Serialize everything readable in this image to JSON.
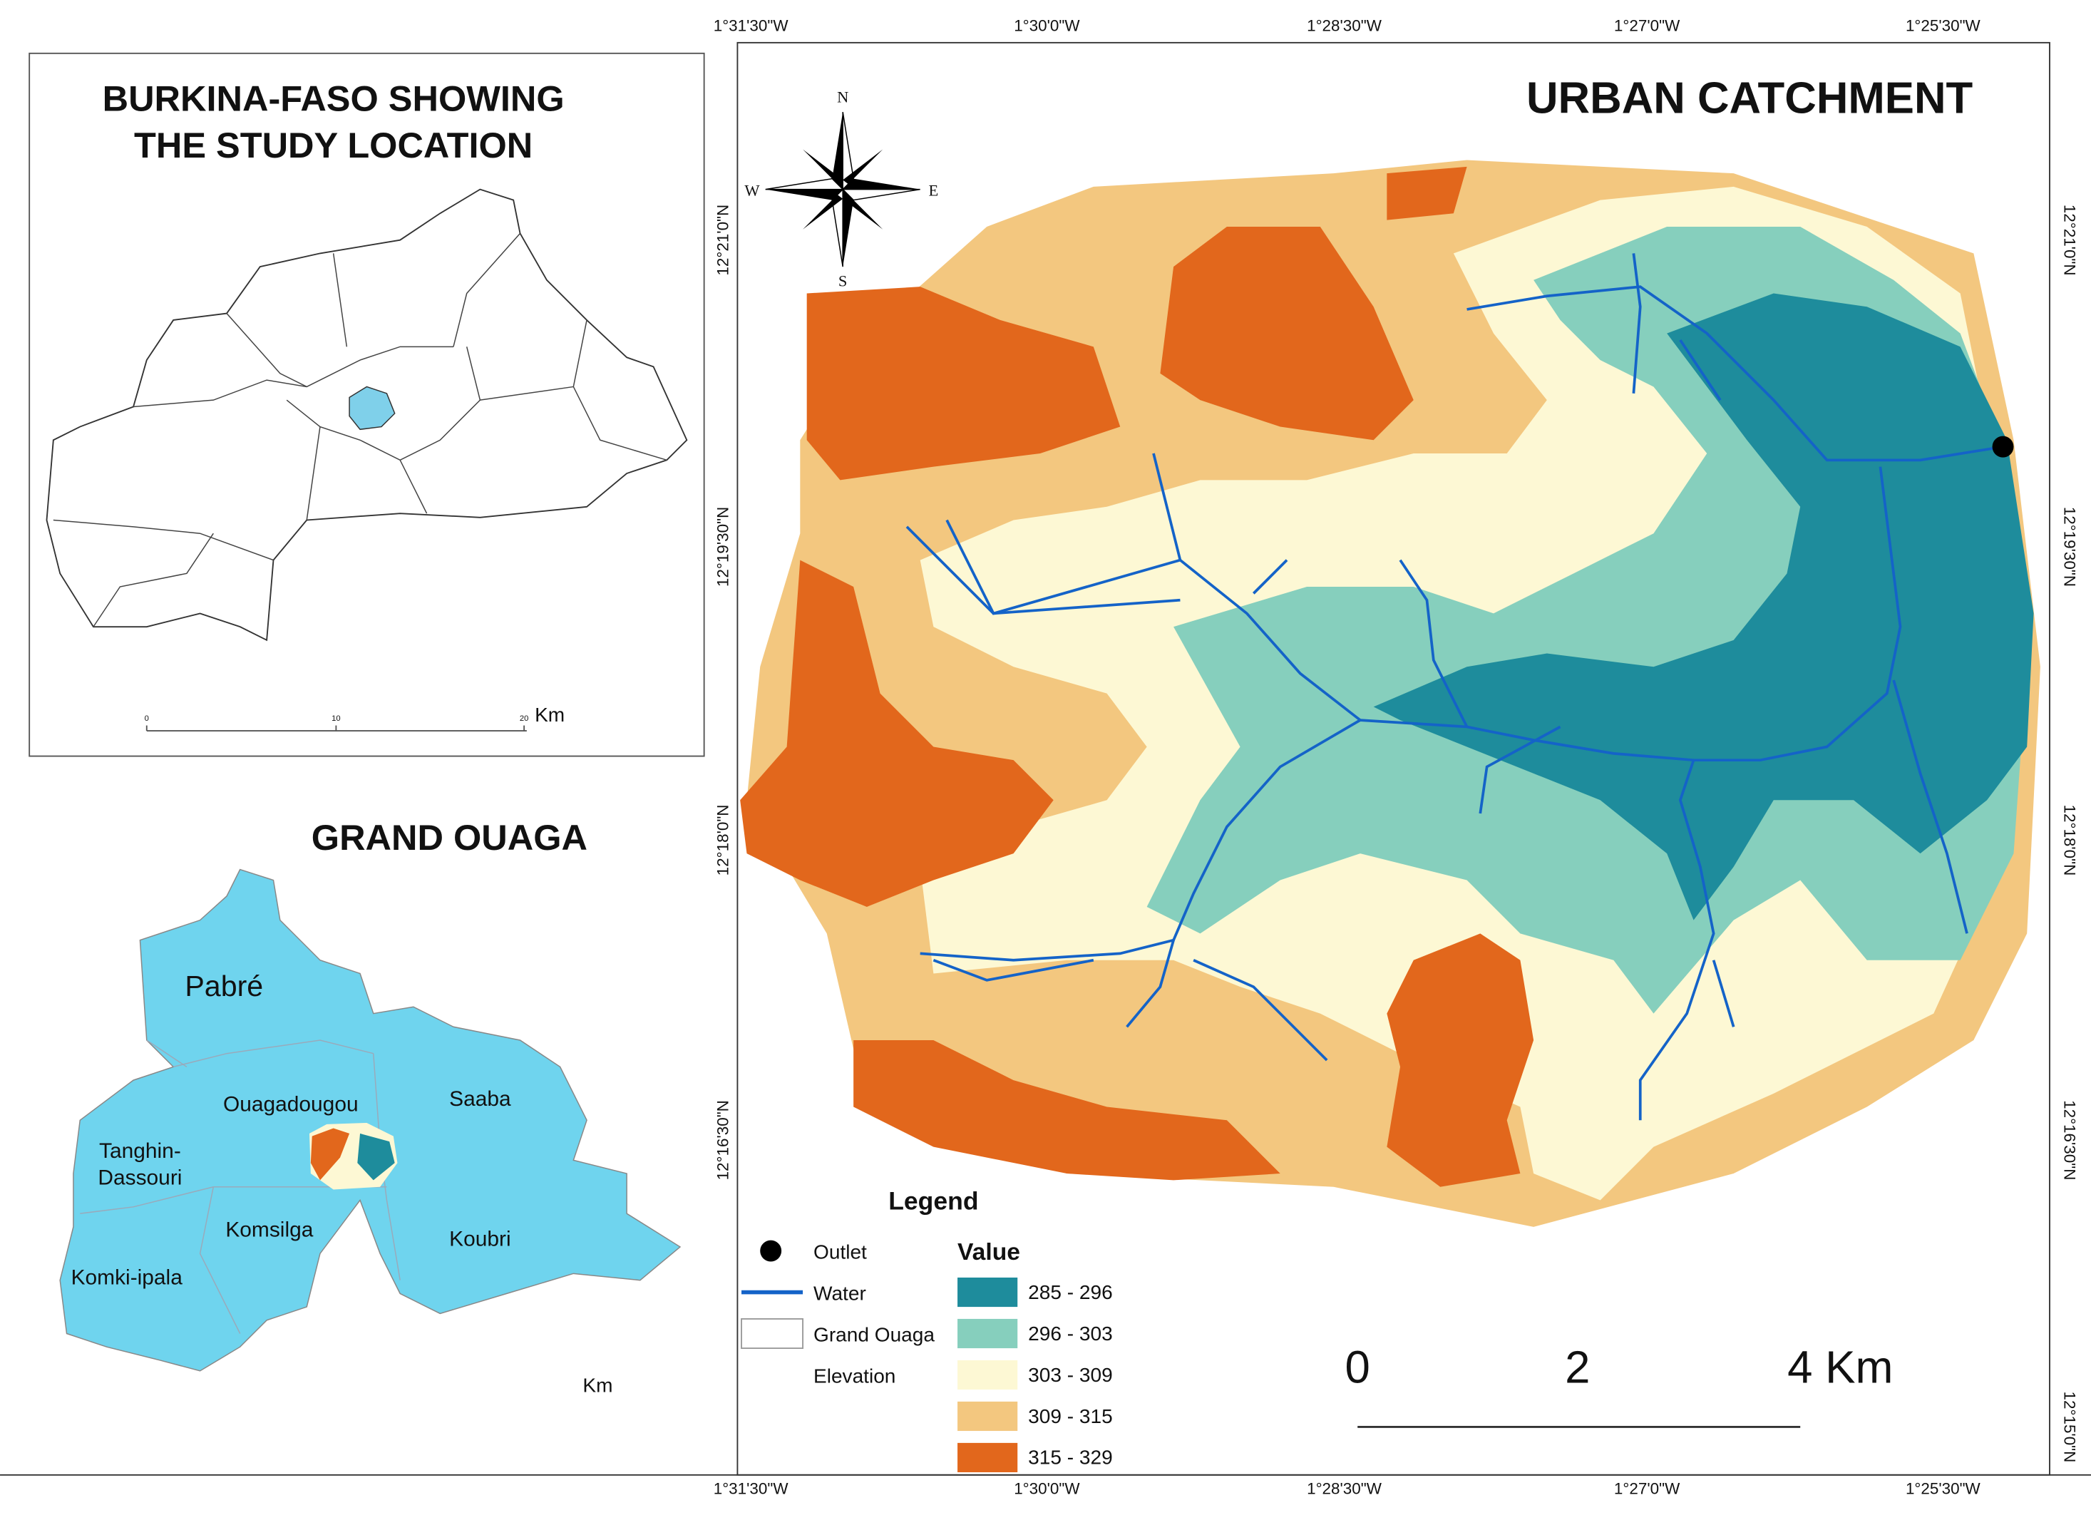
{
  "inset_country": {
    "title_lines": [
      "BURKINA-FASO SHOWING",
      "THE STUDY LOCATION"
    ],
    "scale_labels": [
      "0",
      "10",
      "20"
    ],
    "scale_unit": "Km"
  },
  "inset_region": {
    "title": "GRAND OUAGA",
    "places": [
      {
        "lines": [
          "Pabré"
        ]
      },
      {
        "lines": [
          "Ouagadougou"
        ]
      },
      {
        "lines": [
          "Saaba"
        ]
      },
      {
        "lines": [
          "Tanghin-",
          "Dassouri"
        ]
      },
      {
        "lines": [
          "Komsilga"
        ]
      },
      {
        "lines": [
          "Koubri"
        ]
      },
      {
        "lines": [
          "Komki-ipala"
        ]
      }
    ],
    "scale_unit": "Km"
  },
  "main_map": {
    "title": "URBAN CATCHMENT",
    "compass": {
      "n": "N",
      "s": "S",
      "e": "E",
      "w": "W"
    },
    "longitude_labels": [
      "1°31'30\"W",
      "1°30'0\"W",
      "1°28'30\"W",
      "1°27'0\"W",
      "1°25'30\"W"
    ],
    "latitude_labels": [
      "12°21'0\"N",
      "12°19'30\"N",
      "12°18'0\"N",
      "12°16'30\"N",
      "12°15'0\"N"
    ],
    "legend": {
      "title": "Legend",
      "items": [
        "Outlet",
        "Water",
        "Grand Ouaga",
        "Elevation"
      ],
      "value_title": "Value",
      "classes": [
        {
          "label": "285 - 296",
          "color": "#1e8c9c"
        },
        {
          "label": "296 - 303",
          "color": "#86cfbd"
        },
        {
          "label": "303 - 309",
          "color": "#fdf8d4"
        },
        {
          "label": "309 - 315",
          "color": "#f3c77f"
        },
        {
          "label": "315 - 329",
          "color": "#e2671c"
        }
      ]
    },
    "water_color": "#1463c8",
    "scale_labels": [
      "0",
      "2",
      "4 Km"
    ]
  }
}
